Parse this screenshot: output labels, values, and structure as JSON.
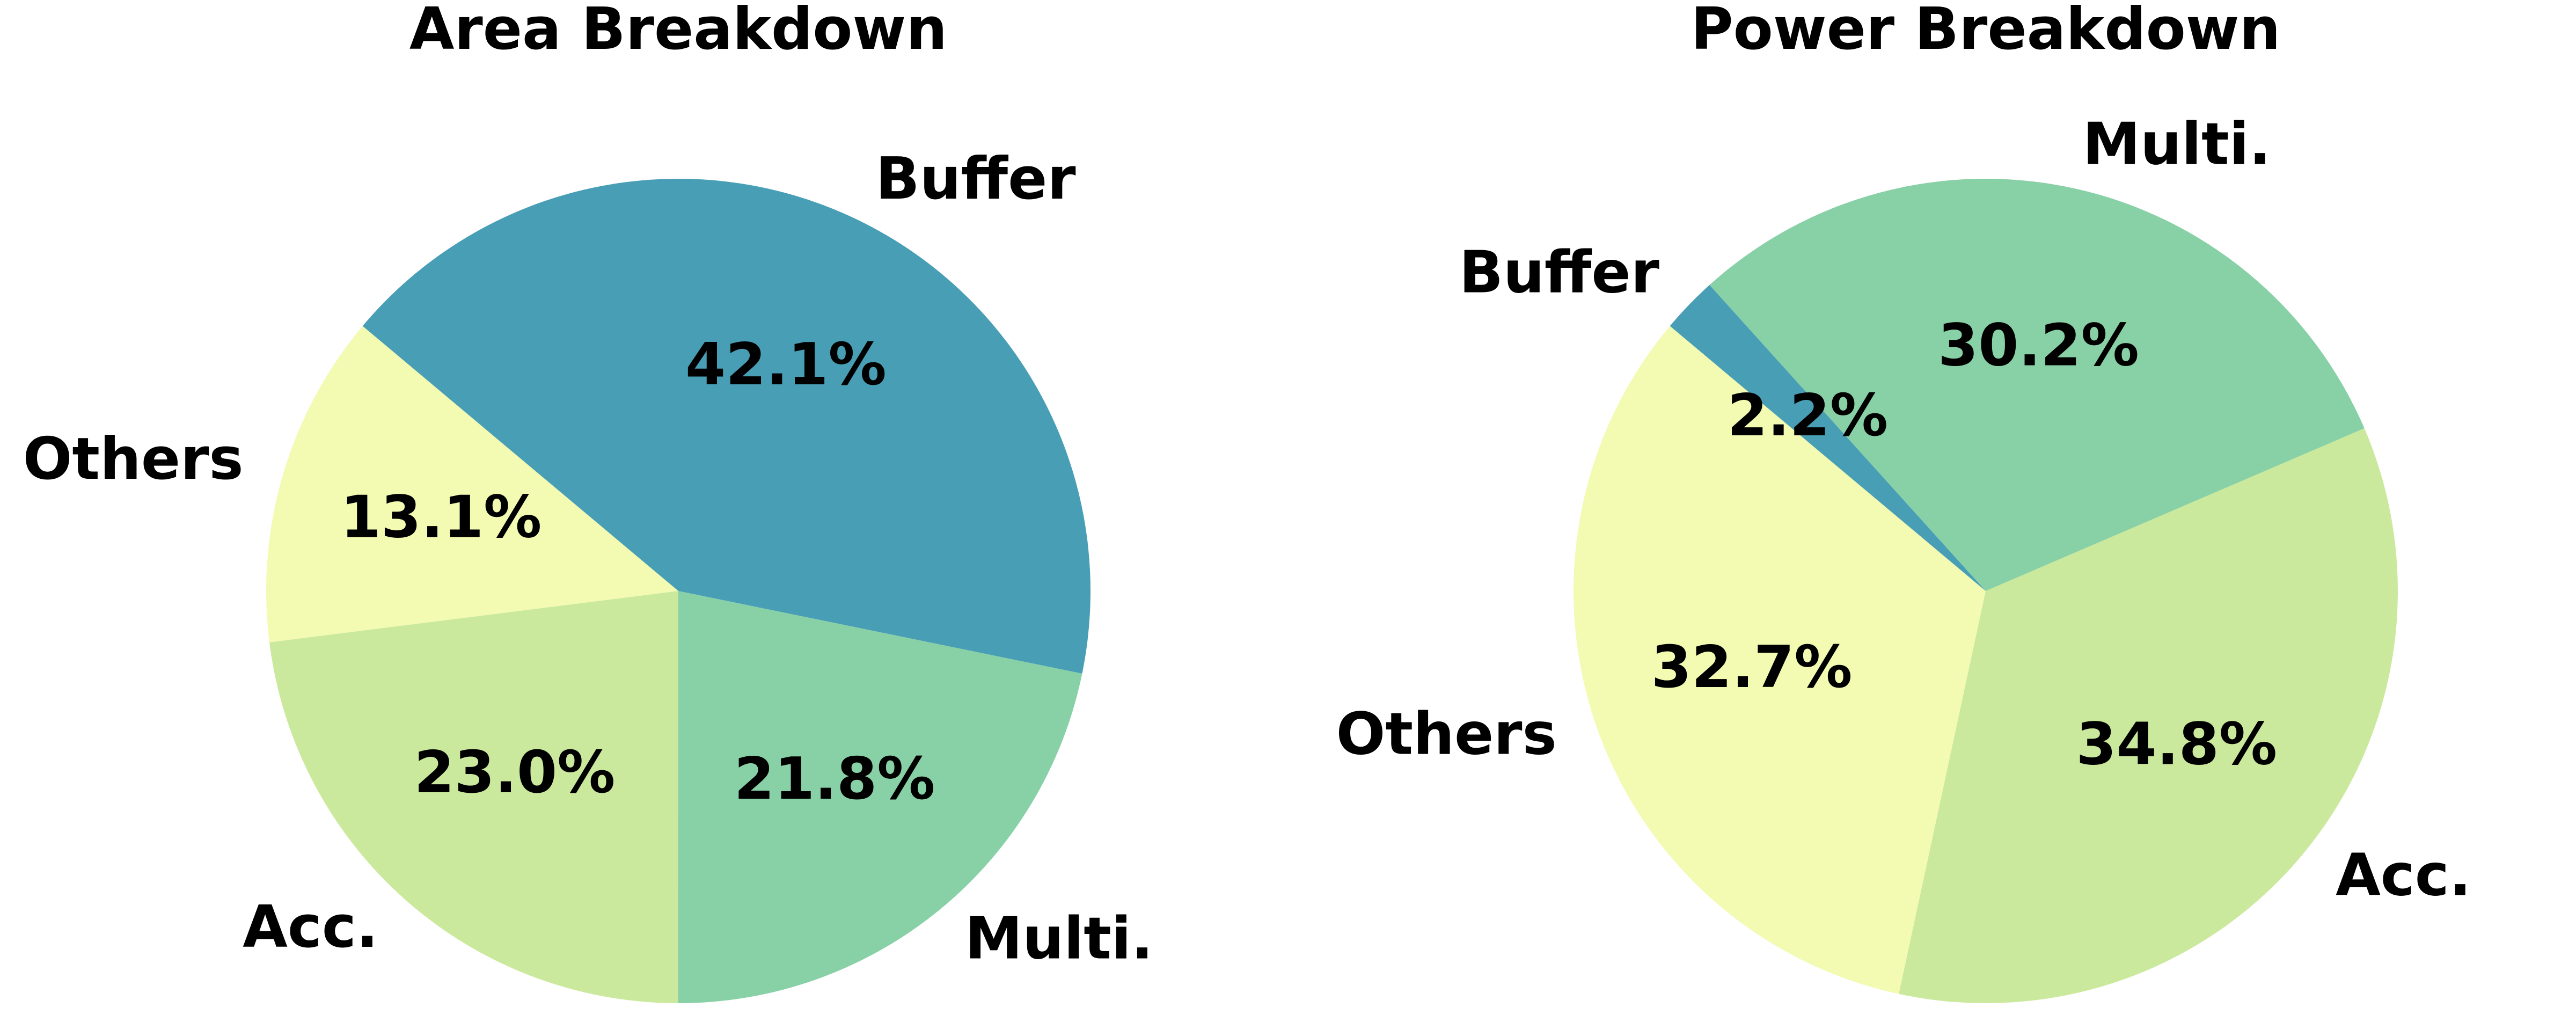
{
  "chart_data": [
    {
      "type": "pie",
      "title": "Area Breakdown",
      "slices": [
        {
          "label": "Others",
          "value": 13.1,
          "pct_label": "13.1%",
          "color": "#f3fab2"
        },
        {
          "label": "Acc.",
          "value": 23.0,
          "pct_label": "23.0%",
          "color": "#cbe99d"
        },
        {
          "label": "Multi.",
          "value": 21.8,
          "pct_label": "21.8%",
          "color": "#88d0a6"
        },
        {
          "label": "Buffer",
          "value": 42.1,
          "pct_label": "42.1%",
          "color": "#489eb5"
        }
      ]
    },
    {
      "type": "pie",
      "title": "Power Breakdown",
      "slices": [
        {
          "label": "Others",
          "value": 32.7,
          "pct_label": "32.7%",
          "color": "#f3fab2"
        },
        {
          "label": "Acc.",
          "value": 34.8,
          "pct_label": "34.8%",
          "color": "#cbe99d"
        },
        {
          "label": "Multi.",
          "value": 30.2,
          "pct_label": "30.2%",
          "color": "#88d0a6"
        },
        {
          "label": "Buffer",
          "value": 2.2,
          "pct_label": "2.2%",
          "color": "#489eb5"
        }
      ]
    }
  ]
}
